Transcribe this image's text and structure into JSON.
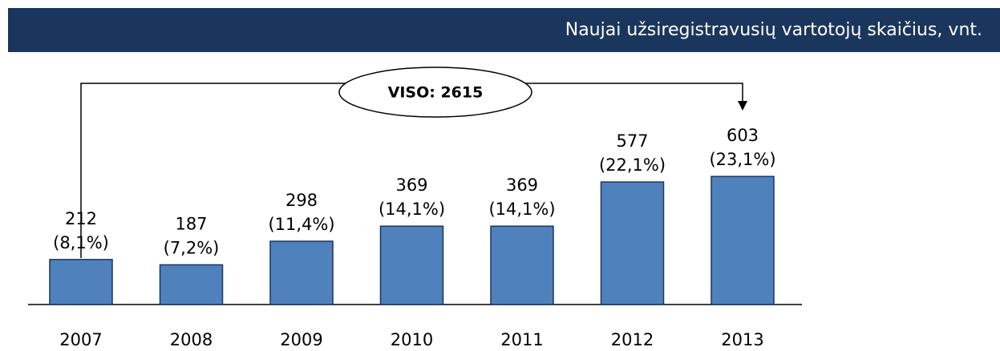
{
  "chart_data": {
    "type": "bar",
    "title": "Naujai užsiregistravusių vartotojų skaičius, vnt.",
    "annotation": "VISO: 2615",
    "categories": [
      "2007",
      "2008",
      "2009",
      "2010",
      "2011",
      "2012",
      "2013"
    ],
    "values": [
      212,
      187,
      298,
      369,
      369,
      577,
      603
    ],
    "percent_labels": [
      "(8,1%)",
      "(7,2%)",
      "(11,4%)",
      "(14,1%)",
      "(14,1%)",
      "(22,1%)",
      "(23,1%)"
    ],
    "color": "#4f81bd",
    "ylim": [
      0,
      700
    ],
    "grid": false
  }
}
